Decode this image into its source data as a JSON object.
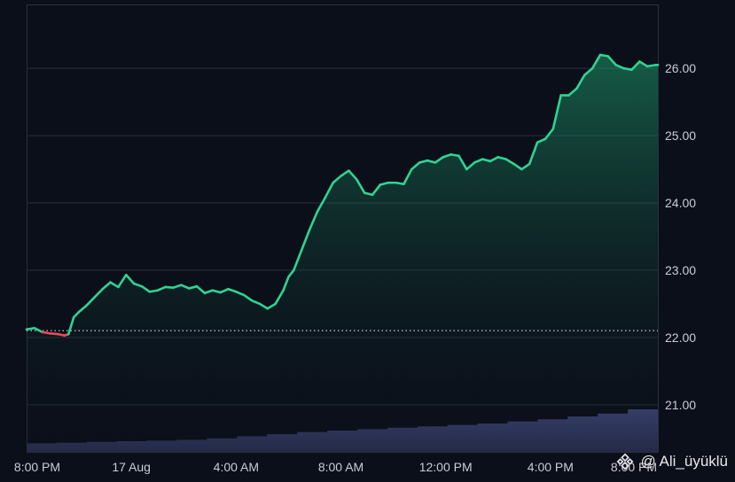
{
  "chart_data": {
    "type": "area",
    "title": "",
    "xlabel": "",
    "ylabel": "",
    "ylim": [
      20.3,
      26.95
    ],
    "yticks": [
      21.0,
      22.0,
      23.0,
      24.0,
      25.0,
      26.0
    ],
    "ytick_labels": [
      "21.00",
      "22.00",
      "23.00",
      "24.00",
      "25.00",
      "26.00"
    ],
    "xtick_labels": [
      "8:00 PM",
      "17 Aug",
      "4:00 AM",
      "8:00 AM",
      "12:00 PM",
      "4:00 PM",
      "8:00 PM"
    ],
    "xtick_hours": [
      0,
      4,
      8,
      12,
      16,
      20,
      24
    ],
    "xlim_hours": [
      0,
      24.1
    ],
    "baseline": 22.1,
    "colors": {
      "up": "#2fd493",
      "down": "#e84d5b",
      "volume": "#2c3253",
      "grid": "#2a2f3d",
      "baseline": "#c9ccd4"
    },
    "grid": true,
    "x_hours": [
      0.0,
      0.3,
      0.6,
      0.9,
      1.2,
      1.45,
      1.6,
      1.8,
      2.0,
      2.3,
      2.6,
      2.9,
      3.2,
      3.5,
      3.8,
      4.1,
      4.4,
      4.7,
      5.0,
      5.3,
      5.6,
      5.9,
      6.2,
      6.5,
      6.8,
      7.1,
      7.4,
      7.7,
      8.0,
      8.3,
      8.6,
      8.9,
      9.2,
      9.5,
      9.8,
      10.0,
      10.2,
      10.5,
      10.8,
      11.1,
      11.4,
      11.7,
      12.0,
      12.3,
      12.6,
      12.9,
      13.2,
      13.5,
      13.8,
      14.1,
      14.4,
      14.7,
      15.0,
      15.3,
      15.6,
      15.9,
      16.2,
      16.5,
      16.8,
      17.1,
      17.4,
      17.7,
      18.0,
      18.3,
      18.6,
      18.9,
      19.2,
      19.5,
      19.8,
      20.1,
      20.4,
      20.7,
      21.0,
      21.3,
      21.6,
      21.9,
      22.2,
      22.5,
      22.8,
      23.1,
      23.4,
      23.7,
      24.0,
      24.1
    ],
    "y_values": [
      22.12,
      22.14,
      22.08,
      22.06,
      22.05,
      22.03,
      22.05,
      22.3,
      22.38,
      22.48,
      22.6,
      22.72,
      22.82,
      22.75,
      22.93,
      22.8,
      22.76,
      22.68,
      22.7,
      22.75,
      22.74,
      22.78,
      22.73,
      22.76,
      22.66,
      22.7,
      22.67,
      22.72,
      22.68,
      22.63,
      22.55,
      22.5,
      22.43,
      22.5,
      22.7,
      22.9,
      23.0,
      23.3,
      23.6,
      23.87,
      24.08,
      24.3,
      24.4,
      24.48,
      24.35,
      24.15,
      24.12,
      24.27,
      24.3,
      24.3,
      24.28,
      24.5,
      24.6,
      24.63,
      24.6,
      24.68,
      24.72,
      24.7,
      24.5,
      24.6,
      24.65,
      24.62,
      24.68,
      24.65,
      24.58,
      24.5,
      24.58,
      24.9,
      24.95,
      25.1,
      25.6,
      25.6,
      25.7,
      25.9,
      26.0,
      26.2,
      26.18,
      26.05,
      26.0,
      25.98,
      26.1,
      26.03,
      26.05,
      26.05
    ],
    "volume_levels": [
      0.12,
      0.13,
      0.14,
      0.15,
      0.16,
      0.17,
      0.19,
      0.22,
      0.25,
      0.28,
      0.3,
      0.32,
      0.34,
      0.36,
      0.38,
      0.4,
      0.43,
      0.46,
      0.5,
      0.54,
      0.6
    ]
  },
  "watermark": {
    "text": "@ Ali_üyüklü",
    "logo_icon": "binance-diamond-icon"
  }
}
